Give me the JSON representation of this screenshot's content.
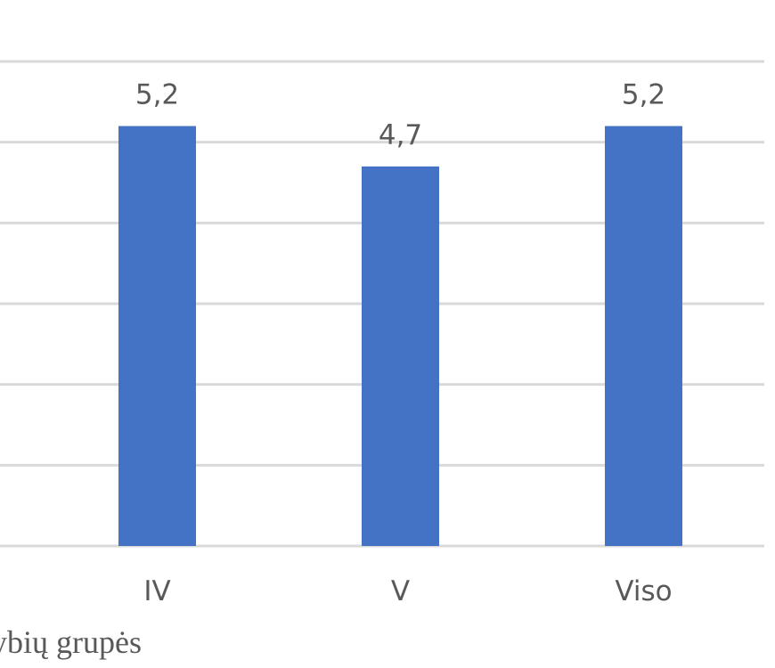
{
  "chart_data": {
    "type": "bar",
    "categories": [
      "IV",
      "V",
      "Viso"
    ],
    "values": [
      5.2,
      4.7,
      5.2
    ],
    "data_labels": [
      "5,2",
      "4,7",
      "5,2"
    ],
    "ylim": [
      0,
      6
    ],
    "gridlines": [
      0,
      1,
      2,
      3,
      4,
      5,
      6
    ],
    "grid": true,
    "legend": "none",
    "xlabel": "dybių grupės",
    "colors": {
      "bar": "#4472C4",
      "grid": "#D9D9D9",
      "text": "#595959"
    }
  }
}
